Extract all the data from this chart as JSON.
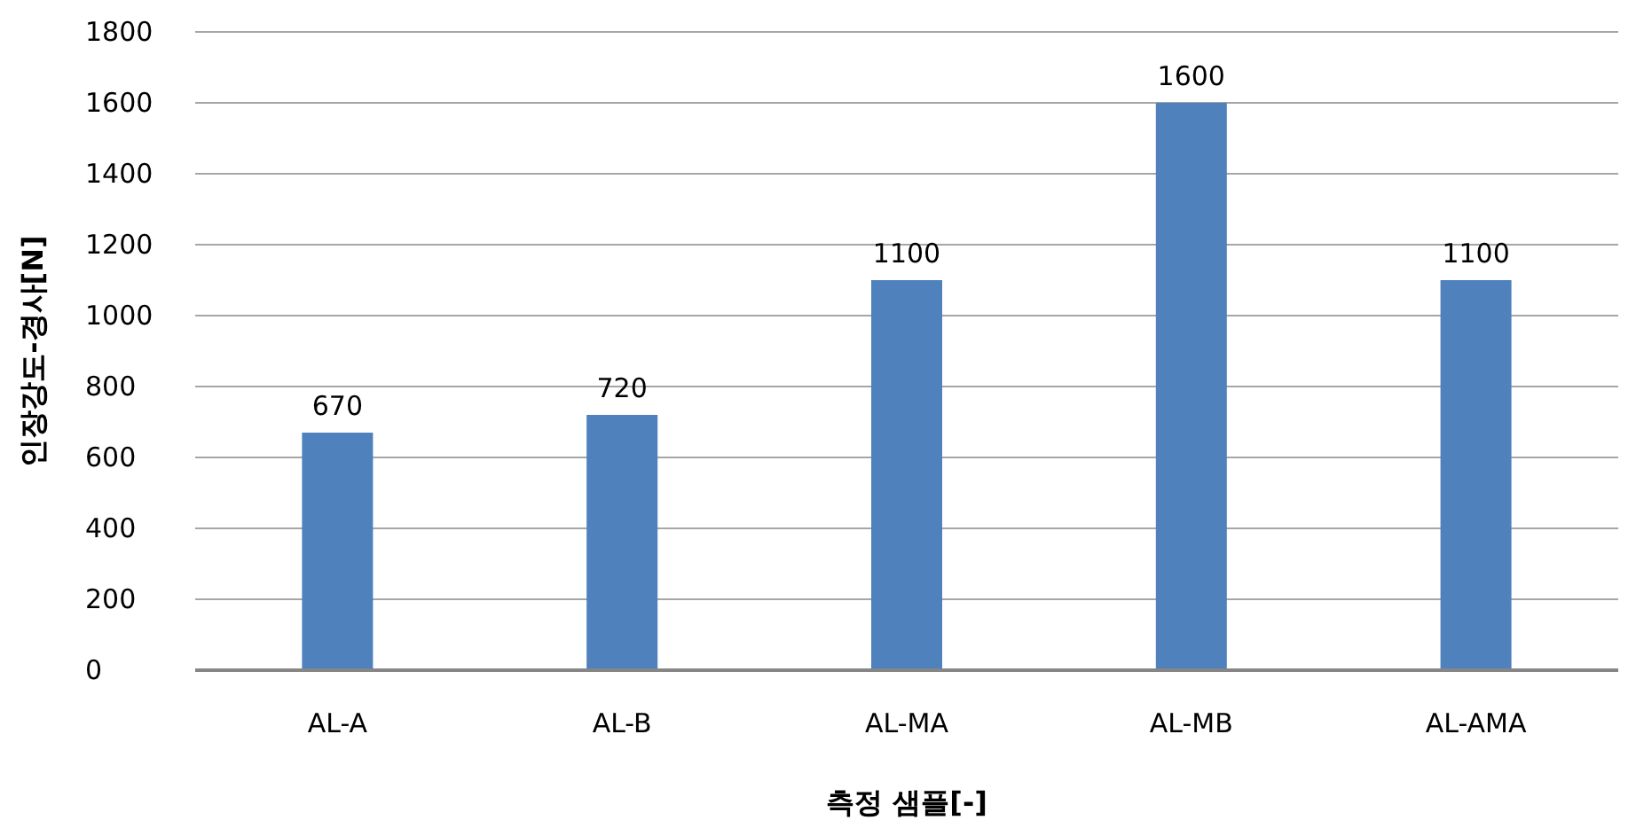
{
  "chart_data": {
    "type": "bar",
    "xlabel": "측정 샘플[-]",
    "ylabel": "인장강도-경사[N]",
    "categories": [
      "AL-A",
      "AL-B",
      "AL-MA",
      "AL-MB",
      "AL-AMA"
    ],
    "values": [
      670,
      720,
      1100,
      1600,
      1100
    ],
    "color": "#4f81bd",
    "ylim": [
      0,
      1800
    ],
    "yticks": [
      0,
      200,
      400,
      600,
      800,
      1000,
      1200,
      1400,
      1600,
      1800
    ],
    "grid": "y",
    "data_labels": true
  }
}
